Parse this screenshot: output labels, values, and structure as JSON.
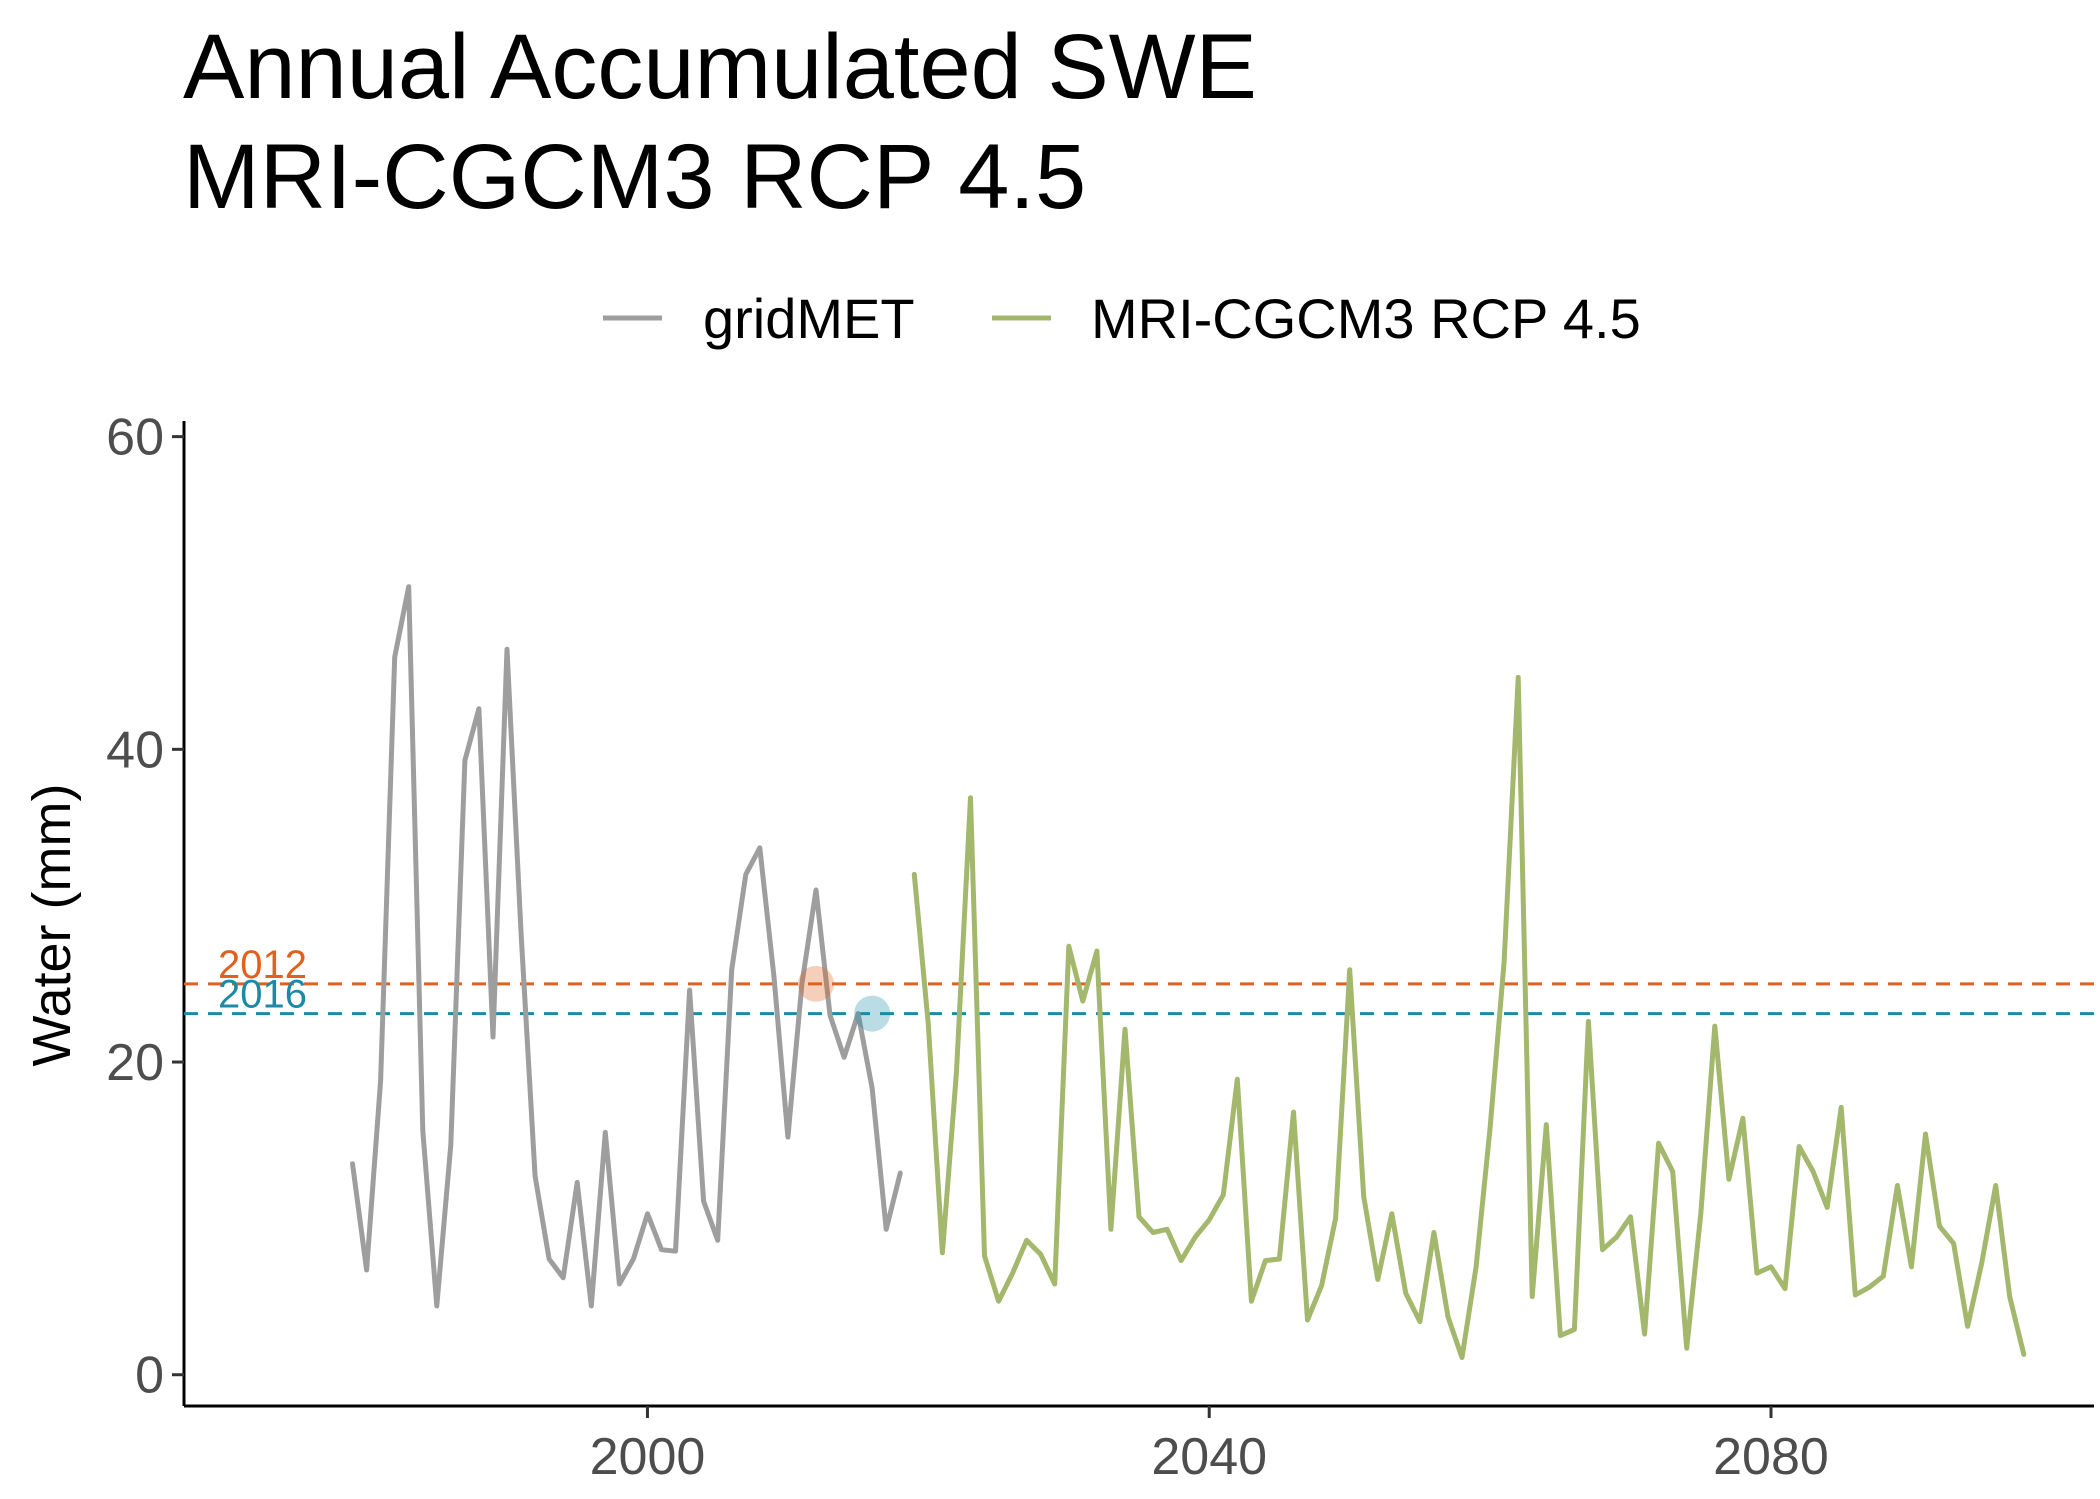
{
  "chart_data": {
    "type": "line",
    "title": [
      "Annual Accumulated SWE",
      "MRI-CGCM3 RCP 4.5"
    ],
    "xlabel": "",
    "ylabel": "Water (mm)",
    "xlim": [
      1967,
      2103
    ],
    "ylim": [
      -2,
      61
    ],
    "xticks": [
      2000,
      2040,
      2080
    ],
    "yticks": [
      0,
      20,
      40,
      60
    ],
    "grid": false,
    "legend": "top",
    "series": [
      {
        "name": "gridMET",
        "color": "#9e9e9e",
        "x_start": 1979,
        "values": [
          13.5,
          6.7,
          18.8,
          45.9,
          50.4,
          15.6,
          4.4,
          14.7,
          39.3,
          42.6,
          21.6,
          46.4,
          28.2,
          12.7,
          7.4,
          6.2,
          12.3,
          4.4,
          15.5,
          5.8,
          7.4,
          10.3,
          8.0,
          7.9,
          24.6,
          11.1,
          8.6,
          25.9,
          32.0,
          33.7,
          25.5,
          15.2,
          25.0,
          31.0,
          23.0,
          20.3,
          23.1,
          18.3,
          9.3,
          12.9
        ]
      },
      {
        "name": "MRI-CGCM3 RCP 4.5",
        "color": "#a3b86c",
        "x_start": 2019,
        "values": [
          32.0,
          22.4,
          7.8,
          19.3,
          36.9,
          7.6,
          4.7,
          6.5,
          8.6,
          7.7,
          5.8,
          27.4,
          23.9,
          27.1,
          9.3,
          22.1,
          10.1,
          9.1,
          9.3,
          7.3,
          8.8,
          9.9,
          11.5,
          18.9,
          4.7,
          7.3,
          7.4,
          16.8,
          3.5,
          5.7,
          10.0,
          25.9,
          11.4,
          6.1,
          10.3,
          5.2,
          3.4,
          9.1,
          3.7,
          1.1,
          6.9,
          15.8,
          26.4,
          44.6,
          5.0,
          16.0,
          2.5,
          2.9,
          22.6,
          8.0,
          8.8,
          10.1,
          2.6,
          14.8,
          13.0,
          1.7,
          10.3,
          22.3,
          12.5,
          16.4,
          6.5,
          6.9,
          5.5,
          14.6,
          13.0,
          10.7,
          17.1,
          5.1,
          5.6,
          6.3,
          12.1,
          6.9,
          15.4,
          9.5,
          8.4,
          3.1,
          7.1,
          12.1,
          5.0,
          1.3
        ]
      }
    ],
    "reference_lines": [
      {
        "label": "2012",
        "y": 25.0,
        "color": "#e0611e",
        "marker_x": 2012
      },
      {
        "label": "2016",
        "y": 23.1,
        "color": "#1c8aa6",
        "marker_x": 2016
      }
    ]
  }
}
